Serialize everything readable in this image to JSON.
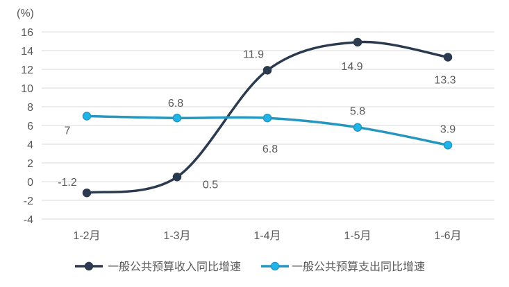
{
  "chart_data": {
    "type": "line",
    "unit_label": "(%)",
    "categories": [
      "1-2月",
      "1-3月",
      "1-4月",
      "1-5月",
      "1-6月"
    ],
    "ylim": [
      -4,
      16
    ],
    "yticks": [
      -4,
      -2,
      0,
      2,
      4,
      6,
      8,
      10,
      12,
      14,
      16
    ],
    "grid": true,
    "legend_position": "bottom",
    "series": [
      {
        "name": "一般公共预算收入同比增速",
        "values": [
          -1.2,
          0.5,
          11.9,
          14.9,
          13.3
        ],
        "labels": [
          "-1.2",
          "0.5",
          "11.9",
          "14.9",
          "13.3"
        ],
        "color": "#2b3a4f",
        "marker_fill": "#2b3a4f"
      },
      {
        "name": "一般公共预算支出同比增速",
        "values": [
          7,
          6.8,
          6.8,
          5.8,
          3.9
        ],
        "labels": [
          "7",
          "6.8",
          "6.8",
          "5.8",
          "3.9"
        ],
        "color": "#2596be",
        "marker_fill": "#1fb5ea"
      }
    ]
  }
}
